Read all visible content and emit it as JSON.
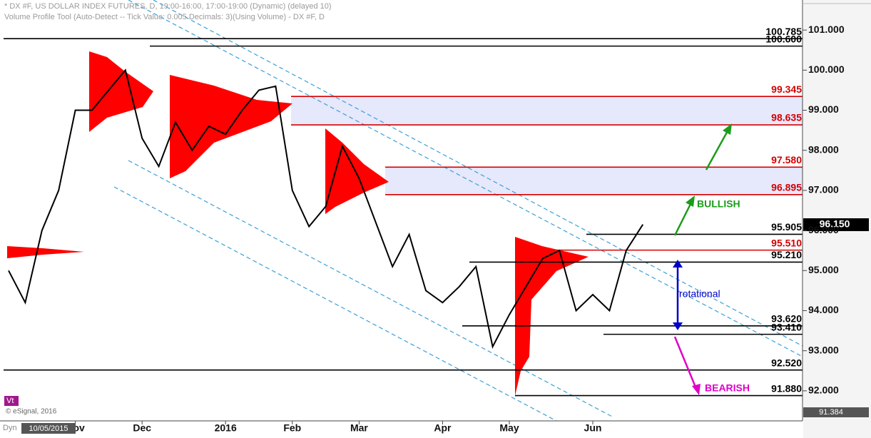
{
  "chart_data": {
    "type": "line",
    "title": "* DX #F, US DOLLAR INDEX FUTURES, D, 19:00-16:00, 17:00-19:00 (Dynamic) (delayed 10)",
    "subtitle": "Volume Profile Tool (Auto-Detect -- Tick Value: 0.005 Decimals: 3)(Using Volume) - DX #F, D",
    "categories": [
      null,
      null,
      null,
      null,
      "Nov",
      null,
      null,
      null,
      "Dec",
      null,
      null,
      null,
      null,
      "2016",
      null,
      null,
      null,
      "Feb",
      null,
      null,
      null,
      "Mar",
      null,
      null,
      null,
      null,
      "Apr",
      null,
      null,
      null,
      "May",
      null,
      null,
      null,
      null,
      "Jun",
      null,
      null,
      null
    ],
    "values": [
      95.0,
      94.2,
      96.0,
      97.0,
      99.0,
      99.0,
      99.5,
      100.0,
      98.3,
      97.6,
      98.7,
      98.0,
      98.6,
      98.4,
      99.0,
      99.5,
      99.6,
      97.0,
      96.1,
      96.6,
      98.1,
      97.3,
      96.2,
      95.1,
      95.9,
      94.5,
      94.2,
      94.6,
      95.1,
      93.1,
      93.9,
      94.6,
      95.3,
      95.5,
      94.0,
      94.4,
      94.0,
      95.5,
      96.15
    ],
    "color": "#000000",
    "ylim": [
      91.25,
      101.75
    ],
    "yticks": [
      {
        "value": 92,
        "label": "92.000"
      },
      {
        "value": 93,
        "label": "93.000"
      },
      {
        "value": 94,
        "label": "94.000"
      },
      {
        "value": 95,
        "label": "95.000"
      },
      {
        "value": 96,
        "label": "96.000"
      },
      {
        "value": 97,
        "label": "97.000"
      },
      {
        "value": 98,
        "label": "98.000"
      },
      {
        "value": 99,
        "label": "99.000"
      },
      {
        "value": 100,
        "label": "100.000"
      },
      {
        "value": 101,
        "label": "101.000"
      }
    ],
    "levels": [
      {
        "value": 100.785,
        "color": "#000000"
      },
      {
        "value": 100.6,
        "label": "100.600",
        "color": "#000000"
      },
      {
        "value": 99.345,
        "color": "#d40000"
      },
      {
        "value": 98.635,
        "color": "#d40000"
      },
      {
        "value": 97.58,
        "label": "97.580",
        "color": "#d40000"
      },
      {
        "value": 96.895,
        "color": "#d40000"
      },
      {
        "value": 95.905,
        "color": "#000000"
      },
      {
        "value": 95.51,
        "label": "95.510",
        "color": "#d40000"
      },
      {
        "value": 95.21,
        "label": "95.210",
        "color": "#000000"
      },
      {
        "value": 93.62,
        "label": "93.620",
        "color": "#000000"
      },
      {
        "value": 93.41,
        "label": "93.410",
        "color": "#000000"
      },
      {
        "value": 92.52,
        "label": "92.520",
        "color": "#000000"
      },
      {
        "value": 91.88,
        "label": "91.880",
        "color": "#000000"
      }
    ],
    "last_price": {
      "value": 96.15,
      "label": "96.150"
    },
    "low_marker": {
      "value": 91.384,
      "label": "91.384"
    },
    "annotations": [
      "BULLISH",
      "rotational",
      "BEARISH"
    ],
    "start_date": "10/05/2015",
    "copyright": "© eSignal, 2016",
    "study_tag": "Vt",
    "mode_tag": "Dyn"
  }
}
